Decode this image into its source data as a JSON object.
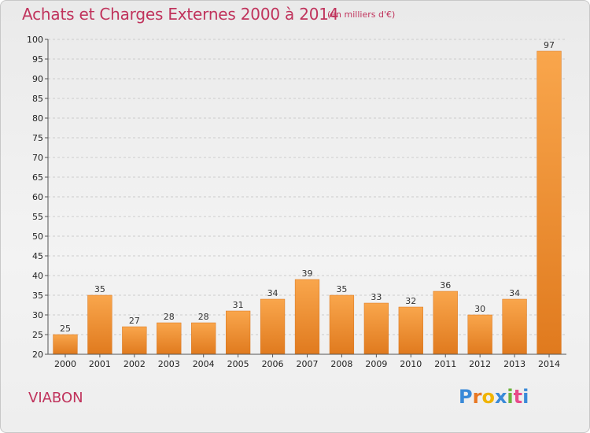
{
  "header": {
    "title": "Achats et Charges Externes 2000 à 2014",
    "subtitle": "(en milliers d'€)"
  },
  "footer": {
    "commune": "VIABON",
    "logo_text": "Proxiti",
    "logo_letters": [
      "P",
      "r",
      "o",
      "x",
      "i",
      "t",
      "i"
    ],
    "logo_colors": [
      "#3a8ad8",
      "#e87722",
      "#f0b400",
      "#3a8ad8",
      "#6bb33c",
      "#e84a8a",
      "#3a8ad8"
    ]
  },
  "colors": {
    "bar_light": "#f9a64c",
    "bar_dark": "#e07a1e",
    "title": "#c0335c",
    "grid": "#cccccc"
  },
  "chart_data": {
    "type": "bar",
    "title": "Achats et Charges Externes 2000 à 2014",
    "subtitle": "(en milliers d'€)",
    "categories": [
      "2000",
      "2001",
      "2002",
      "2003",
      "2004",
      "2005",
      "2006",
      "2007",
      "2008",
      "2009",
      "2010",
      "2011",
      "2012",
      "2013",
      "2014"
    ],
    "values": [
      25,
      35,
      27,
      28,
      28,
      31,
      34,
      39,
      35,
      33,
      32,
      36,
      30,
      34,
      97
    ],
    "ylim": [
      20,
      100
    ],
    "yticks": [
      20,
      25,
      30,
      35,
      40,
      45,
      50,
      55,
      60,
      65,
      70,
      75,
      80,
      85,
      90,
      95,
      100
    ],
    "xlabel": "",
    "ylabel": "",
    "grid": "horizontal"
  }
}
